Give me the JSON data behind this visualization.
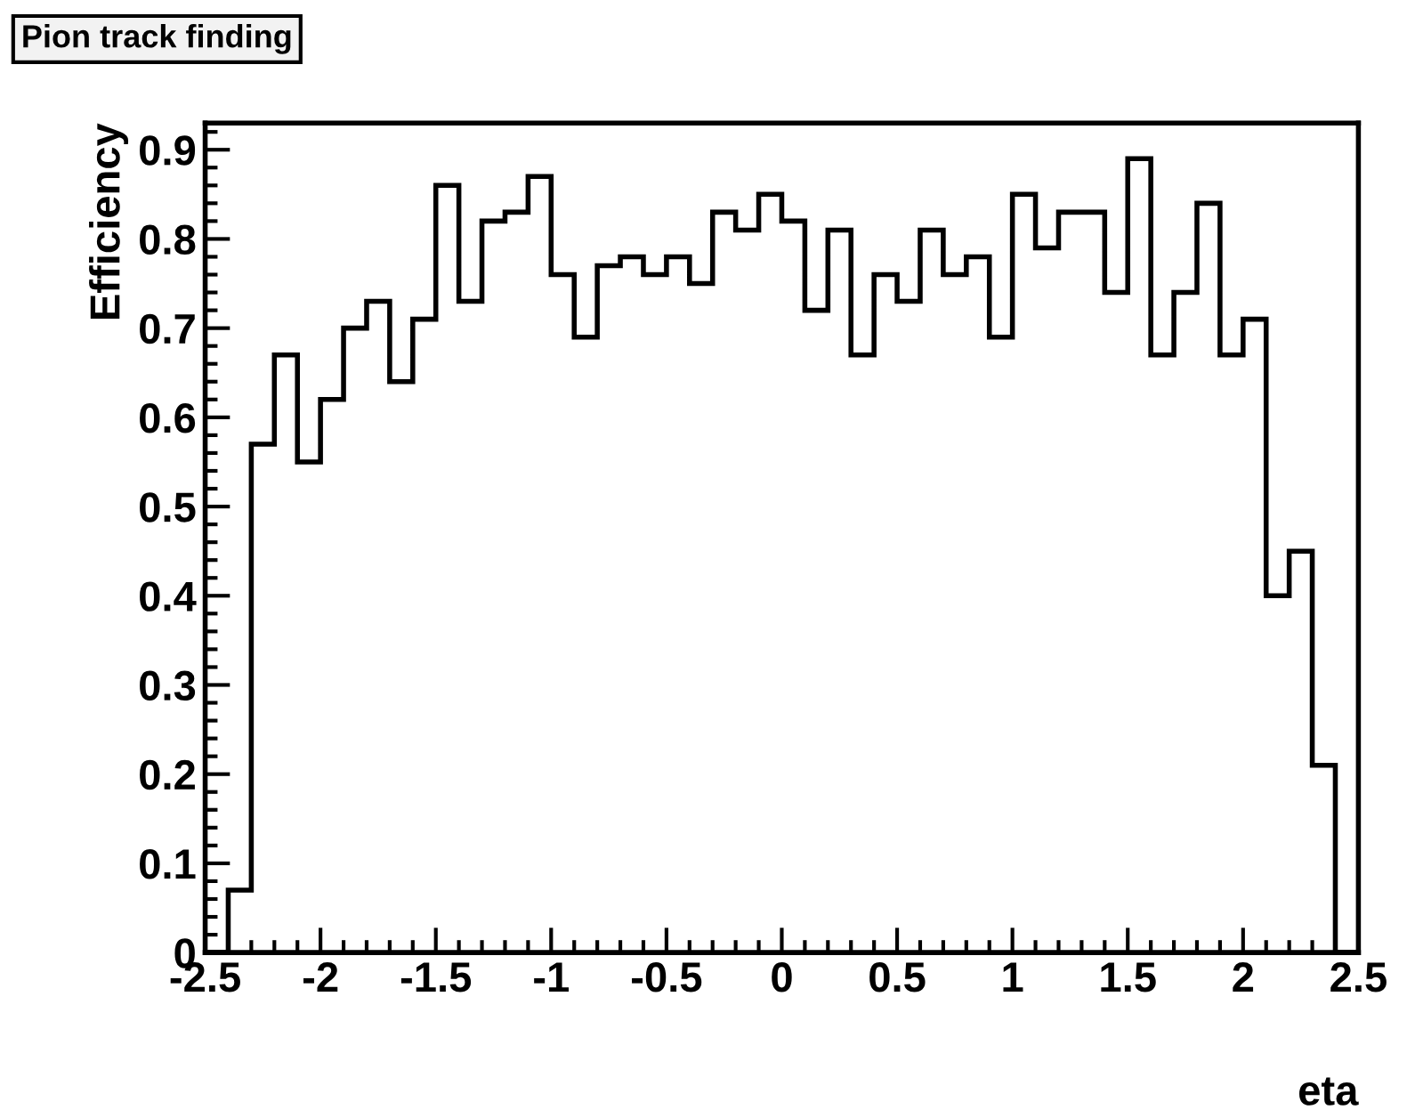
{
  "chart_data": {
    "type": "histogram",
    "title": "Pion track finding",
    "xlabel": "eta",
    "ylabel": "Efficiency",
    "bins": [
      -2.5,
      -2.4,
      -2.3,
      -2.2,
      -2.1,
      -2.0,
      -1.9,
      -1.8,
      -1.7,
      -1.6,
      -1.5,
      -1.4,
      -1.3,
      -1.2,
      -1.1,
      -1.0,
      -0.9,
      -0.8,
      -0.7,
      -0.6,
      -0.5,
      -0.4,
      -0.3,
      -0.2,
      -0.1,
      0.0,
      0.1,
      0.2,
      0.3,
      0.4,
      0.5,
      0.6,
      0.7,
      0.8,
      0.9,
      1.0,
      1.1,
      1.2,
      1.3,
      1.4,
      1.5,
      1.6,
      1.7,
      1.8,
      1.9,
      2.0,
      2.1,
      2.2,
      2.3,
      2.4,
      2.5
    ],
    "values": [
      0,
      0.07,
      0.57,
      0.67,
      0.55,
      0.62,
      0.7,
      0.73,
      0.64,
      0.71,
      0.86,
      0.73,
      0.82,
      0.83,
      0.87,
      0.76,
      0.69,
      0.77,
      0.78,
      0.76,
      0.78,
      0.75,
      0.83,
      0.81,
      0.85,
      0.82,
      0.72,
      0.81,
      0.67,
      0.76,
      0.73,
      0.81,
      0.76,
      0.78,
      0.69,
      0.85,
      0.79,
      0.83,
      0.83,
      0.74,
      0.89,
      0.67,
      0.74,
      0.84,
      0.67,
      0.71,
      0.4,
      0.45,
      0.21,
      0
    ],
    "color": "#000000",
    "xlim": [
      -2.5,
      2.5
    ],
    "ylim": [
      0,
      0.93
    ],
    "xticks": [
      {
        "value": -2.5,
        "label": "-2.5"
      },
      {
        "value": -2,
        "label": "-2"
      },
      {
        "value": -1.5,
        "label": "-1.5"
      },
      {
        "value": -1,
        "label": "-1"
      },
      {
        "value": -0.5,
        "label": "-0.5"
      },
      0,
      0.5,
      1,
      1.5,
      2,
      2.5
    ],
    "yticks": [
      0,
      0.1,
      0.2,
      0.3,
      0.4,
      0.5,
      0.6,
      0.7,
      0.8,
      0.9
    ],
    "grid": false,
    "legend": false
  }
}
